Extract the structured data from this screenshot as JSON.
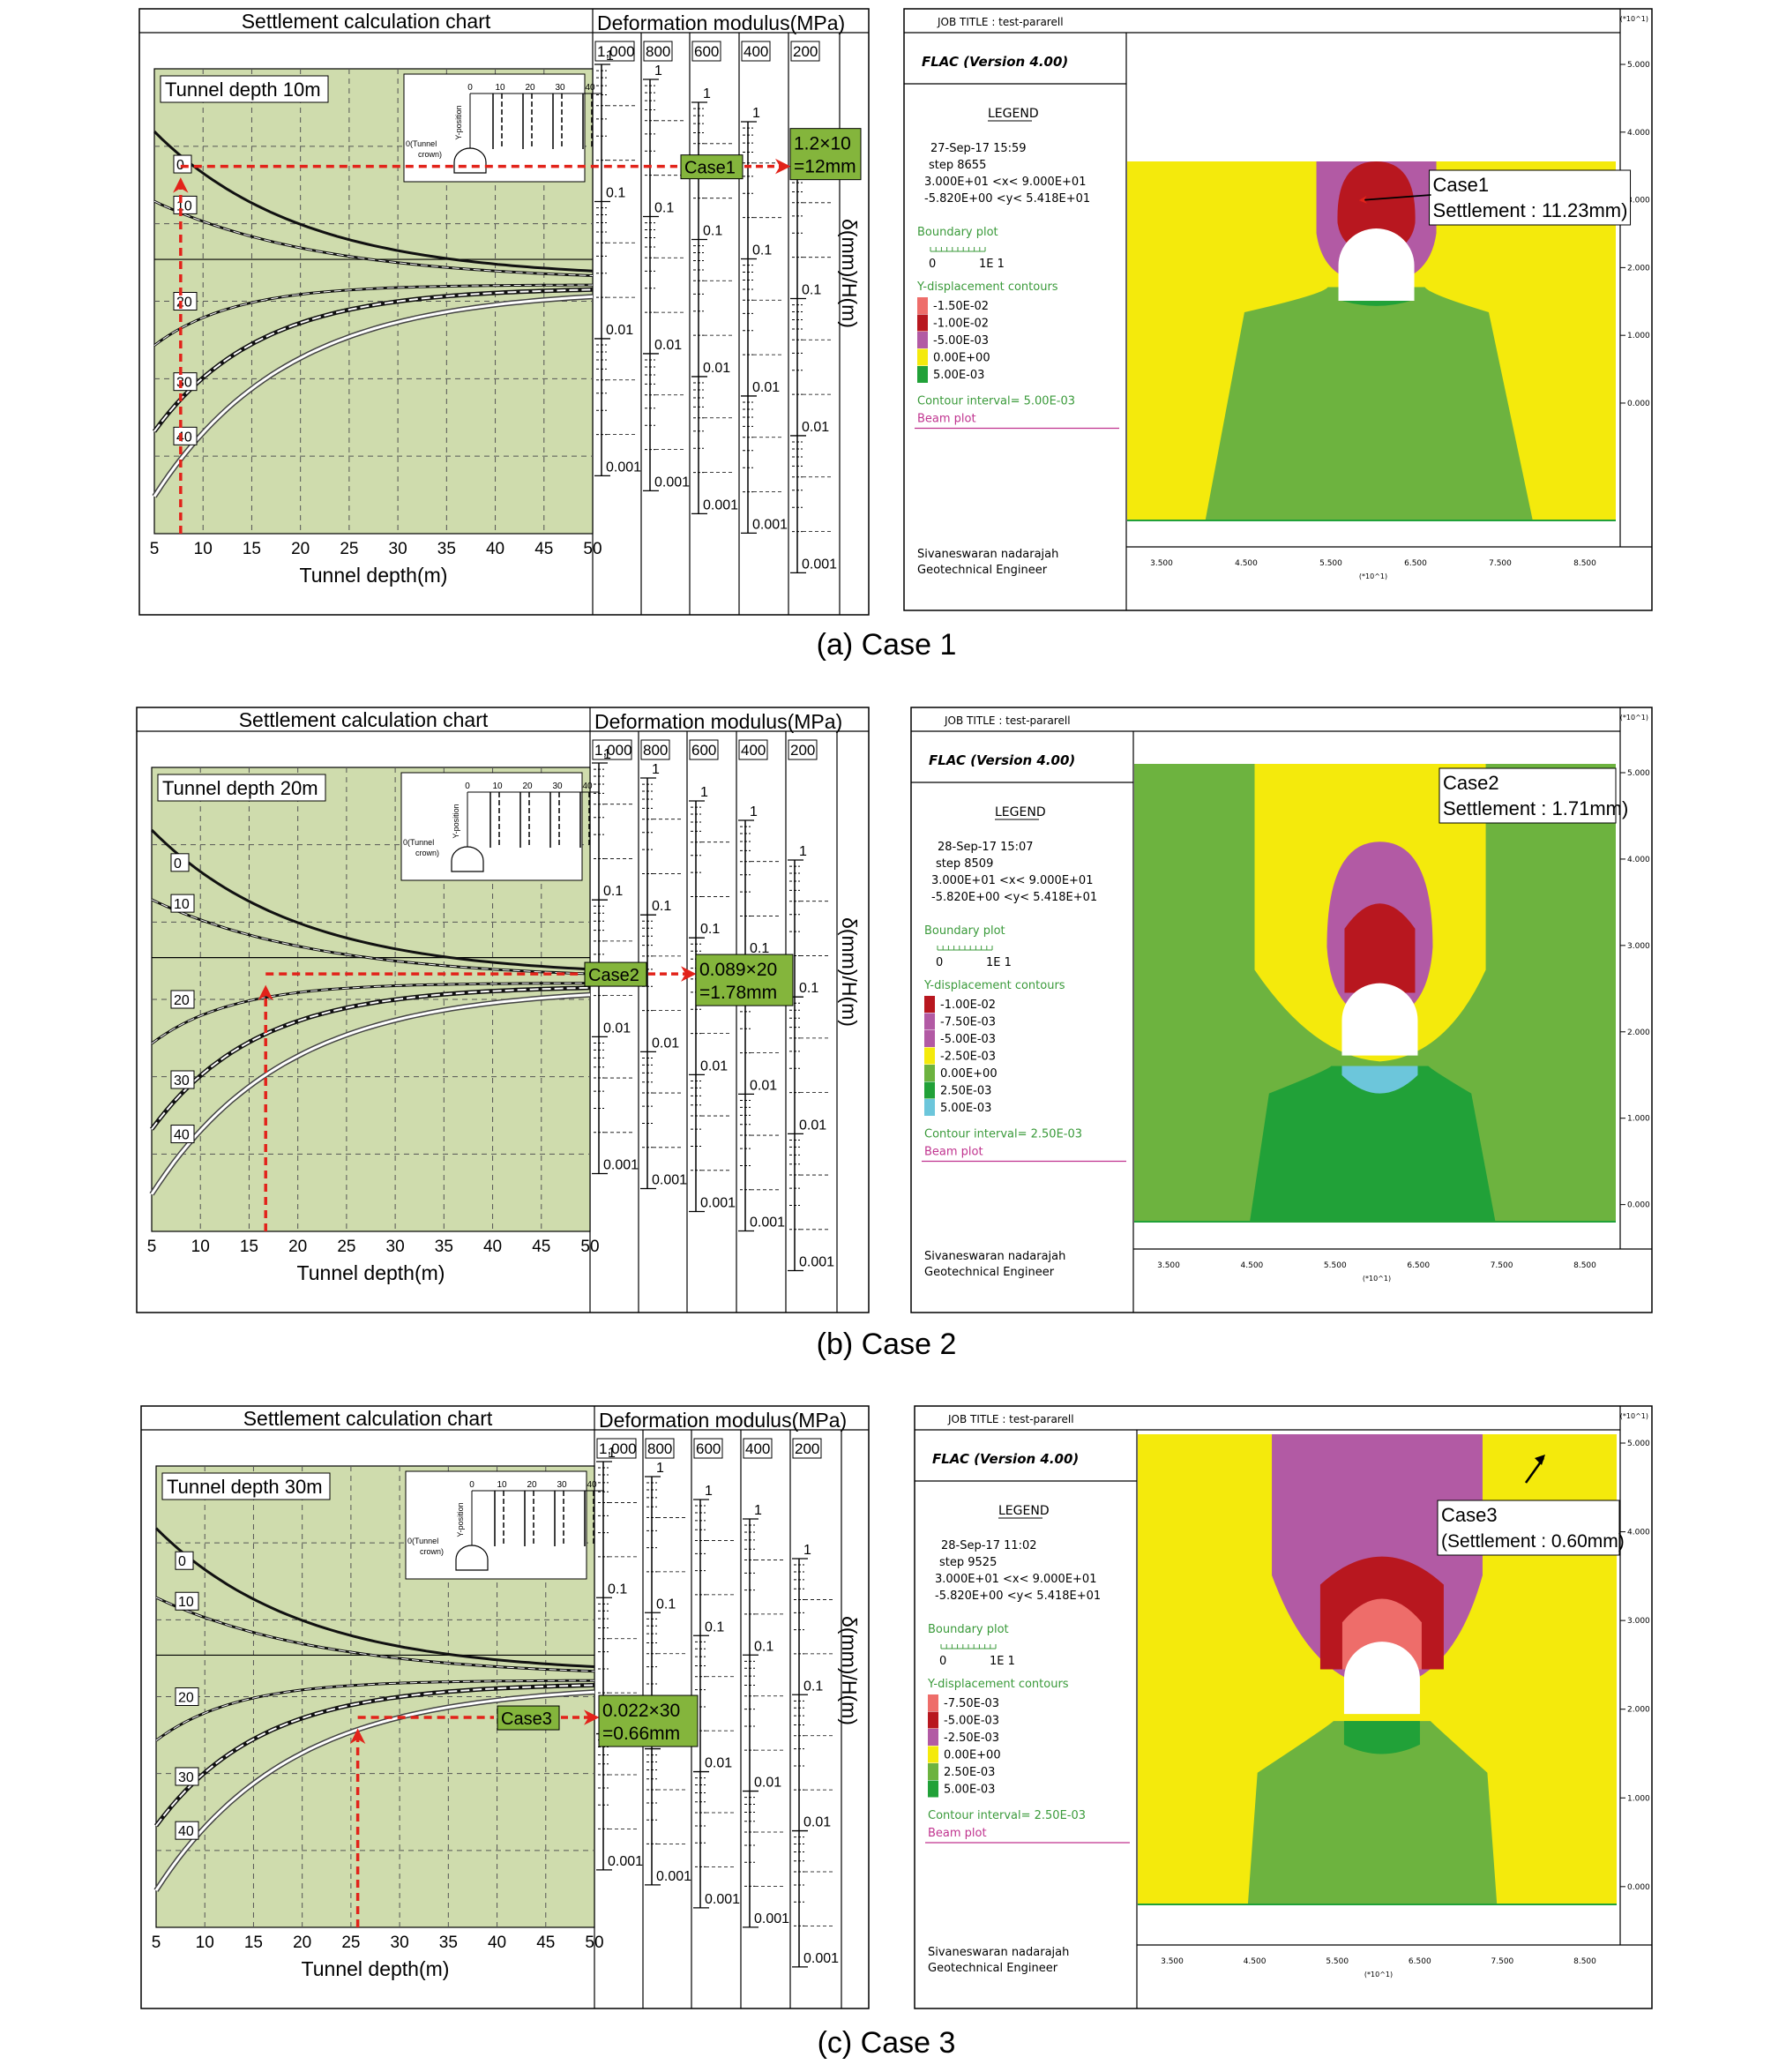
{
  "chart_title": "Settlement calculation chart",
  "modulus_title": "Deformation modulus(MPa)",
  "modulus_labels": [
    "1,000",
    "800",
    "600",
    "400",
    "200"
  ],
  "x_ticks": [
    "5",
    "10",
    "15",
    "20",
    "25",
    "30",
    "35",
    "40",
    "45",
    "50"
  ],
  "x_label": "Tunnel depth(m)",
  "y_label": "δ(mm)/H(m)",
  "chart_scale_ticks": [
    "1",
    "0.1",
    "0.01",
    "0.001"
  ],
  "curve_labels": [
    "0",
    "10",
    "20",
    "30",
    "40"
  ],
  "inset_labels": [
    "0",
    "10",
    "20",
    "30",
    "40",
    "Y-position",
    "0(Tunnel",
    "crown)"
  ],
  "colors": {
    "chart_bg": "#cfdcad",
    "label_green": "#84b53c",
    "arrow_red": "#e2231a",
    "dark_red": "#b8171f",
    "light_red": "#ee6d6a",
    "magenta": "#b25aa4",
    "yellow": "#f4ea0c",
    "light_green": "#6db33f",
    "dark_green": "#21a138",
    "cyan": "#6cc6db",
    "legend_green": "#3a9a3a",
    "legend_magenta": "#c0338f"
  },
  "cases": [
    {
      "caption": "(a) Case 1",
      "depth_title": "Tunnel depth 10m",
      "case_label": "Case1",
      "result_line1": "1.2×10",
      "result_line2": "=12mm",
      "flac": {
        "job_title": "JOB TITLE : test-pararell",
        "version": "FLAC (Version 4.00)",
        "legend": "LEGEND",
        "date": "27-Sep-17  15:59",
        "step": "step    8655",
        "xrange": "3.000E+01 <x<  9.000E+01",
        "yrange": "-5.820E+00 <y<  5.418E+01",
        "boundary": "Boundary plot",
        "scale_0": "0",
        "scale_1": "1E  1",
        "contours_title": "Y-displacement contours",
        "contours": [
          {
            "color": "#ee6d6a",
            "label": "-1.50E-02"
          },
          {
            "color": "#b8171f",
            "label": "-1.00E-02"
          },
          {
            "color": "#b25aa4",
            "label": "-5.00E-03"
          },
          {
            "color": "#f4ea0c",
            "label": "0.00E+00"
          },
          {
            "color": "#21a138",
            "label": "5.00E-03"
          }
        ],
        "interval": "Contour interval=  5.00E-03",
        "beam": "Beam plot",
        "author": "Sivaneswaran nadarajah",
        "role": "Geotechnical Engineer",
        "annot1": "Case1",
        "annot2": "Settlement : 11.23mm)",
        "x_ticks": [
          "3.500",
          "4.500",
          "5.500",
          "6.500",
          "7.500",
          "8.500"
        ],
        "y_ticks": [
          "5.000",
          "4.000",
          "3.000",
          "2.000",
          "1.000",
          "0.000"
        ],
        "multiplier": "(*10^1)"
      }
    },
    {
      "caption": "(b) Case 2",
      "depth_title": "Tunnel depth 20m",
      "case_label": "Case2",
      "result_line1": "0.089×20",
      "result_line2": "=1.78mm",
      "flac": {
        "job_title": "JOB TITLE : test-pararell",
        "version": "FLAC (Version 4.00)",
        "legend": "LEGEND",
        "date": "28-Sep-17  15:07",
        "step": "step    8509",
        "xrange": "3.000E+01 <x<  9.000E+01",
        "yrange": "-5.820E+00 <y<  5.418E+01",
        "boundary": "Boundary plot",
        "scale_0": "0",
        "scale_1": "1E  1",
        "contours_title": "Y-displacement contours",
        "contours": [
          {
            "color": "#b8171f",
            "label": "-1.00E-02"
          },
          {
            "color": "#b25aa4",
            "label": "-7.50E-03"
          },
          {
            "color": "#b25aa4",
            "label": "-5.00E-03"
          },
          {
            "color": "#f4ea0c",
            "label": "-2.50E-03"
          },
          {
            "color": "#6db33f",
            "label": "0.00E+00"
          },
          {
            "color": "#21a138",
            "label": "2.50E-03"
          },
          {
            "color": "#6cc6db",
            "label": "5.00E-03"
          }
        ],
        "interval": "Contour interval=  2.50E-03",
        "beam": "Beam plot",
        "author": "Sivaneswaran nadarajah",
        "role": "Geotechnical Engineer",
        "annot1": "Case2",
        "annot2": "Settlement : 1.71mm)",
        "x_ticks": [
          "3.500",
          "4.500",
          "5.500",
          "6.500",
          "7.500",
          "8.500"
        ],
        "y_ticks": [
          "5.000",
          "4.000",
          "3.000",
          "2.000",
          "1.000",
          "0.000"
        ],
        "multiplier": "(*10^1)"
      }
    },
    {
      "caption": "(c) Case 3",
      "depth_title": "Tunnel depth 30m",
      "case_label": "Case3",
      "result_line1": "0.022×30",
      "result_line2": "=0.66mm",
      "flac": {
        "job_title": "JOB TITLE : test-pararell",
        "version": "FLAC (Version 4.00)",
        "legend": "LEGEND",
        "date": "28-Sep-17  11:02",
        "step": "step    9525",
        "xrange": "3.000E+01 <x<  9.000E+01",
        "yrange": "-5.820E+00 <y<  5.418E+01",
        "boundary": "Boundary plot",
        "scale_0": "0",
        "scale_1": "1E  1",
        "contours_title": "Y-displacement contours",
        "contours": [
          {
            "color": "#ee6d6a",
            "label": "-7.50E-03"
          },
          {
            "color": "#b8171f",
            "label": "-5.00E-03"
          },
          {
            "color": "#b25aa4",
            "label": "-2.50E-03"
          },
          {
            "color": "#f4ea0c",
            "label": "0.00E+00"
          },
          {
            "color": "#6db33f",
            "label": "2.50E-03"
          },
          {
            "color": "#21a138",
            "label": "5.00E-03"
          }
        ],
        "interval": "Contour interval=  2.50E-03",
        "beam": "Beam plot",
        "author": "Sivaneswaran nadarajah",
        "role": "Geotechnical Engineer",
        "annot1": "Case3",
        "annot2": "(Settlement : 0.60mm)",
        "x_ticks": [
          "3.500",
          "4.500",
          "5.500",
          "6.500",
          "7.500",
          "8.500"
        ],
        "y_ticks": [
          "5.000",
          "4.000",
          "3.000",
          "2.000",
          "1.000",
          "0.000"
        ],
        "multiplier": "(*10^1)"
      }
    }
  ]
}
